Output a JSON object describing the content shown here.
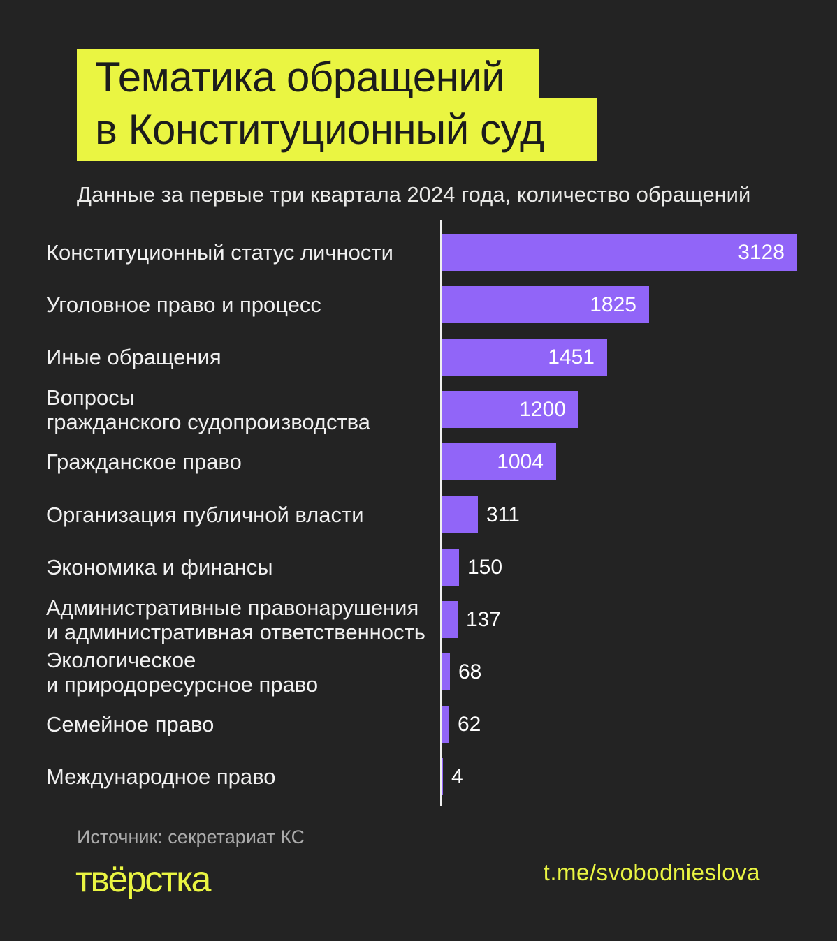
{
  "header": {
    "title_line1": "Тематика обращений",
    "title_line2": "в Конституционный суд",
    "subtitle": "Данные за первые три квартала 2024 года, количество обращений"
  },
  "chart_data": {
    "type": "bar",
    "orientation": "horizontal",
    "title": "Тематика обращений в Конституционный суд",
    "subtitle": "Данные за первые три квартала 2024 года, количество обращений",
    "xlim": [
      0,
      3128
    ],
    "grid": false,
    "legend": false,
    "bar_color": "#9165f8",
    "categories": [
      "Конституционный статус личности",
      "Уголовное право и процесс",
      "Иные обращения",
      "Вопросы гражданского судопроизводства",
      "Гражданское право",
      "Организация публичной власти",
      "Экономика и финансы",
      "Административные правонарушения и административная ответственность",
      "Экологическое и природоресурсное право",
      "Семейное право",
      "Международное право"
    ],
    "values": [
      3128,
      1825,
      1451,
      1200,
      1004,
      311,
      150,
      137,
      68,
      62,
      4
    ],
    "rows": [
      {
        "label_lines": [
          "Конституционный статус личности"
        ],
        "value": 3128
      },
      {
        "label_lines": [
          "Уголовное право и процесс"
        ],
        "value": 1825
      },
      {
        "label_lines": [
          "Иные обращения"
        ],
        "value": 1451
      },
      {
        "label_lines": [
          "Вопросы",
          "гражданского судопроизводства"
        ],
        "value": 1200
      },
      {
        "label_lines": [
          "Гражданское право"
        ],
        "value": 1004
      },
      {
        "label_lines": [
          "Организация публичной власти"
        ],
        "value": 311
      },
      {
        "label_lines": [
          "Экономика и финансы"
        ],
        "value": 150
      },
      {
        "label_lines": [
          "Административные правонарушения",
          "и административная ответственность"
        ],
        "value": 137
      },
      {
        "label_lines": [
          "Экологическое",
          "и природоресурсное право"
        ],
        "value": 68
      },
      {
        "label_lines": [
          "Семейное право"
        ],
        "value": 62
      },
      {
        "label_lines": [
          "Международное право"
        ],
        "value": 4
      }
    ]
  },
  "footer": {
    "source": "Источник: секретариат КС",
    "logo": "твёрстка",
    "link": "t.me/svobodnieslova"
  },
  "colors": {
    "background": "#232323",
    "accent_yellow": "#eaf542",
    "bar_purple": "#9165f8",
    "title_text": "#1c1c1c",
    "value_text": "#ffffff",
    "label_text": "#f0f0f0",
    "source_gray": "#ababab",
    "axis_line": "#efefef"
  }
}
